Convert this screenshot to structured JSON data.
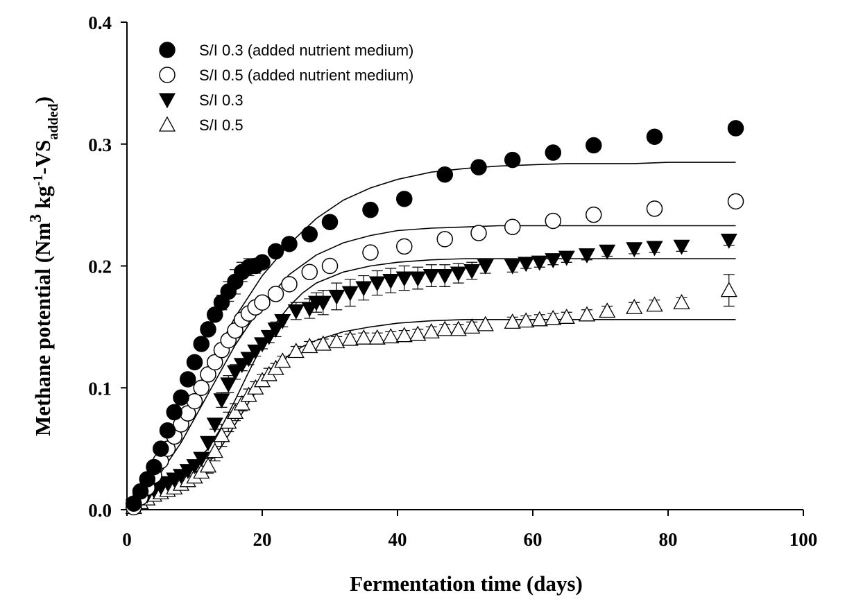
{
  "chart_data": {
    "type": "scatter",
    "title": "",
    "xlabel": "Fermentation time (days)",
    "ylabel": {
      "prefix": "Methane potential (Nm",
      "sup1": "3",
      "mid": " kg",
      "sup2": "-1",
      "mid2": "-VS",
      "sub": "added",
      "suffix": ")"
    },
    "xlim": [
      0,
      100
    ],
    "ylim": [
      0.0,
      0.4
    ],
    "xticks": [
      0,
      20,
      40,
      60,
      80,
      100
    ],
    "xtick_labels": [
      "0",
      "20",
      "40",
      "60",
      "80",
      "100"
    ],
    "yticks": [
      0.0,
      0.1,
      0.2,
      0.3,
      0.4
    ],
    "ytick_labels": [
      "0.0",
      "0.1",
      "0.2",
      "0.3",
      "0.4"
    ],
    "grid": false,
    "legend_position": "top-left",
    "series": [
      {
        "name": "S/I 0.3 (added nutrient medium)",
        "marker": "circle-filled",
        "color": "#000000",
        "x": [
          1,
          2,
          3,
          4,
          5,
          6,
          7,
          8,
          9,
          10,
          11,
          12,
          13,
          14,
          15,
          16,
          17,
          18,
          19,
          20,
          22,
          24,
          27,
          30,
          36,
          41,
          47,
          52,
          57,
          63,
          69,
          78,
          90
        ],
        "y": [
          0.005,
          0.015,
          0.025,
          0.035,
          0.05,
          0.065,
          0.08,
          0.092,
          0.107,
          0.121,
          0.136,
          0.148,
          0.16,
          0.17,
          0.179,
          0.187,
          0.195,
          0.199,
          0.2,
          0.203,
          0.212,
          0.218,
          0.226,
          0.236,
          0.246,
          0.255,
          0.275,
          0.281,
          0.287,
          0.293,
          0.299,
          0.306,
          0.313
        ],
        "err": [
          0,
          0,
          0,
          0,
          0,
          0,
          0,
          0,
          0,
          0,
          0,
          0,
          0.004,
          0.006,
          0.008,
          0.01,
          0.008,
          0.007,
          0.006,
          0.004,
          0,
          0,
          0,
          0,
          0,
          0,
          0,
          0,
          0,
          0,
          0,
          0,
          0
        ]
      },
      {
        "name": "S/I 0.5 (added nutrient medium)",
        "marker": "circle-open",
        "color": "#000000",
        "x": [
          1,
          2,
          3,
          4,
          5,
          6,
          7,
          8,
          9,
          10,
          11,
          12,
          13,
          14,
          15,
          16,
          17,
          18,
          19,
          20,
          22,
          24,
          27,
          30,
          36,
          41,
          47,
          52,
          57,
          63,
          69,
          78,
          90
        ],
        "y": [
          0.002,
          0.01,
          0.018,
          0.028,
          0.04,
          0.05,
          0.06,
          0.07,
          0.079,
          0.089,
          0.1,
          0.111,
          0.121,
          0.131,
          0.139,
          0.147,
          0.156,
          0.161,
          0.166,
          0.17,
          0.177,
          0.185,
          0.195,
          0.2,
          0.211,
          0.216,
          0.222,
          0.227,
          0.232,
          0.237,
          0.242,
          0.247,
          0.253
        ],
        "err": [
          0,
          0,
          0,
          0,
          0,
          0,
          0,
          0,
          0,
          0,
          0,
          0,
          0,
          0,
          0,
          0,
          0,
          0,
          0,
          0,
          0,
          0,
          0,
          0,
          0,
          0,
          0,
          0,
          0,
          0,
          0,
          0,
          0
        ]
      },
      {
        "name": "S/I 0.3",
        "marker": "triangle-down-filled",
        "color": "#000000",
        "x": [
          1,
          2,
          3,
          4,
          5,
          6,
          7,
          8,
          9,
          10,
          11,
          12,
          13,
          14,
          15,
          16,
          17,
          18,
          19,
          20,
          21,
          22,
          23,
          25,
          27,
          28,
          29,
          31,
          33,
          35,
          37,
          39,
          41,
          43,
          45,
          47,
          49,
          51,
          53,
          57,
          59,
          61,
          63,
          65,
          68,
          71,
          75,
          78,
          82,
          89
        ],
        "y": [
          0.003,
          0.008,
          0.012,
          0.016,
          0.019,
          0.022,
          0.025,
          0.028,
          0.032,
          0.036,
          0.042,
          0.055,
          0.07,
          0.09,
          0.103,
          0.113,
          0.119,
          0.124,
          0.13,
          0.136,
          0.142,
          0.148,
          0.155,
          0.163,
          0.165,
          0.17,
          0.17,
          0.175,
          0.178,
          0.182,
          0.186,
          0.188,
          0.19,
          0.19,
          0.192,
          0.192,
          0.194,
          0.196,
          0.2,
          0.2,
          0.202,
          0.203,
          0.205,
          0.207,
          0.209,
          0.212,
          0.214,
          0.215,
          0.216,
          0.221
        ],
        "err": [
          0,
          0,
          0,
          0,
          0,
          0,
          0,
          0,
          0,
          0,
          0,
          0,
          0.004,
          0.006,
          0.007,
          0.006,
          0.005,
          0.005,
          0.004,
          0.004,
          0.005,
          0.006,
          0.005,
          0.007,
          0.008,
          0.008,
          0.01,
          0.011,
          0.011,
          0.01,
          0.01,
          0.01,
          0.01,
          0.009,
          0.009,
          0.009,
          0.008,
          0.007,
          0.006,
          0.005,
          0.004,
          0.004,
          0.004,
          0.004,
          0.004,
          0.004,
          0.004,
          0.004,
          0.004,
          0.004
        ]
      },
      {
        "name": "S/I 0.5",
        "marker": "triangle-up-open",
        "color": "#000000",
        "x": [
          1,
          2,
          3,
          4,
          5,
          6,
          7,
          8,
          9,
          10,
          11,
          12,
          13,
          14,
          15,
          16,
          17,
          18,
          19,
          20,
          21,
          22,
          23,
          25,
          27,
          29,
          31,
          33,
          35,
          37,
          39,
          41,
          43,
          45,
          47,
          49,
          51,
          53,
          57,
          59,
          61,
          63,
          65,
          68,
          71,
          75,
          78,
          82,
          89
        ],
        "y": [
          0.002,
          0.006,
          0.009,
          0.012,
          0.014,
          0.016,
          0.018,
          0.021,
          0.024,
          0.027,
          0.031,
          0.036,
          0.048,
          0.061,
          0.072,
          0.08,
          0.087,
          0.094,
          0.1,
          0.106,
          0.111,
          0.116,
          0.122,
          0.13,
          0.134,
          0.136,
          0.138,
          0.14,
          0.141,
          0.141,
          0.142,
          0.143,
          0.144,
          0.146,
          0.148,
          0.148,
          0.15,
          0.152,
          0.154,
          0.155,
          0.156,
          0.157,
          0.158,
          0.16,
          0.163,
          0.166,
          0.168,
          0.17,
          0.18
        ],
        "err": [
          0,
          0,
          0,
          0,
          0,
          0,
          0,
          0,
          0,
          0,
          0.004,
          0.006,
          0.008,
          0.009,
          0.008,
          0.007,
          0.006,
          0.005,
          0.005,
          0.005,
          0.005,
          0.004,
          0.004,
          0.004,
          0.004,
          0.004,
          0.004,
          0.004,
          0.004,
          0.004,
          0.004,
          0.004,
          0.004,
          0.004,
          0.004,
          0.004,
          0.004,
          0.004,
          0.004,
          0.004,
          0.004,
          0.004,
          0.004,
          0.004,
          0.004,
          0.004,
          0.004,
          0.004,
          0.013
        ]
      }
    ],
    "fits": [
      {
        "series": "S/I 0.3 (added nutrient medium)",
        "x": [
          0,
          4,
          8,
          12,
          16,
          20,
          24,
          28,
          32,
          36,
          40,
          45,
          50,
          55,
          60,
          65,
          70,
          75,
          80,
          85,
          90
        ],
        "y": [
          0.0,
          0.03,
          0.071,
          0.117,
          0.158,
          0.192,
          0.218,
          0.239,
          0.254,
          0.264,
          0.271,
          0.277,
          0.28,
          0.282,
          0.283,
          0.284,
          0.284,
          0.284,
          0.285,
          0.285,
          0.285
        ]
      },
      {
        "series": "S/I 0.5 (added nutrient medium)",
        "x": [
          0,
          4,
          8,
          12,
          16,
          20,
          24,
          28,
          32,
          36,
          40,
          45,
          50,
          55,
          60,
          65,
          70,
          75,
          80,
          85,
          90
        ],
        "y": [
          0.0,
          0.022,
          0.055,
          0.095,
          0.135,
          0.168,
          0.193,
          0.209,
          0.219,
          0.225,
          0.229,
          0.231,
          0.232,
          0.233,
          0.233,
          0.233,
          0.233,
          0.233,
          0.233,
          0.233,
          0.233
        ]
      },
      {
        "series": "S/I 0.3",
        "x": [
          0,
          4,
          8,
          12,
          14,
          16,
          18,
          20,
          22,
          24,
          26,
          28,
          32,
          36,
          40,
          45,
          50,
          55,
          60,
          70,
          80,
          90
        ],
        "y": [
          0.005,
          0.016,
          0.028,
          0.05,
          0.068,
          0.09,
          0.113,
          0.135,
          0.153,
          0.167,
          0.178,
          0.186,
          0.195,
          0.2,
          0.203,
          0.205,
          0.206,
          0.206,
          0.206,
          0.206,
          0.206,
          0.206
        ]
      },
      {
        "series": "S/I 0.5",
        "x": [
          0,
          4,
          8,
          12,
          14,
          16,
          18,
          20,
          22,
          24,
          26,
          28,
          32,
          36,
          40,
          45,
          50,
          55,
          60,
          70,
          80,
          90
        ],
        "y": [
          0.004,
          0.012,
          0.022,
          0.038,
          0.052,
          0.07,
          0.088,
          0.104,
          0.117,
          0.127,
          0.134,
          0.139,
          0.146,
          0.15,
          0.153,
          0.155,
          0.156,
          0.156,
          0.156,
          0.156,
          0.156,
          0.156
        ]
      }
    ]
  }
}
